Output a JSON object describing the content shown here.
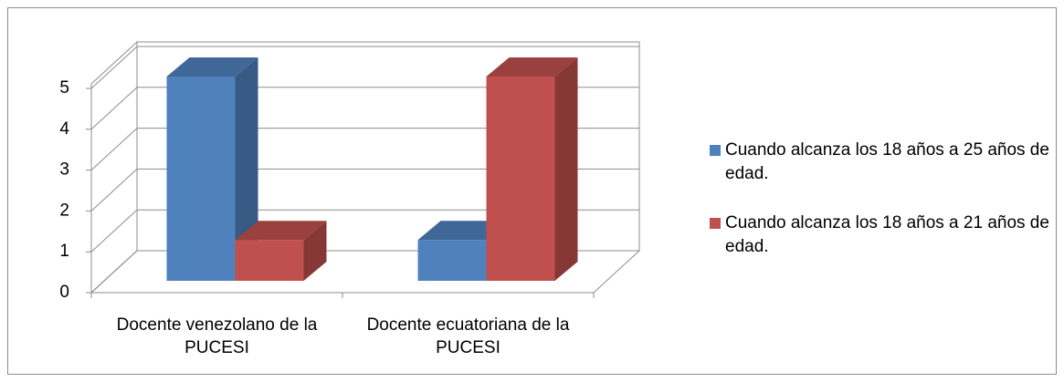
{
  "chart_data": {
    "type": "bar3d",
    "categories": [
      "Docente venezolano de la PUCESI",
      "Docente ecuatoriana de la PUCESI"
    ],
    "series": [
      {
        "name": "Cuando alcanza los 18 años a 25 años de edad.",
        "color": "#4f81bd",
        "values": [
          5,
          1
        ]
      },
      {
        "name": "Cuando alcanza los 18 años a 21 años de edad.",
        "color": "#c0504d",
        "values": [
          1,
          5
        ]
      }
    ],
    "ylim": [
      0,
      5
    ],
    "yticks": [
      0,
      1,
      2,
      3,
      4,
      5
    ],
    "grid": true,
    "legend": "right"
  }
}
